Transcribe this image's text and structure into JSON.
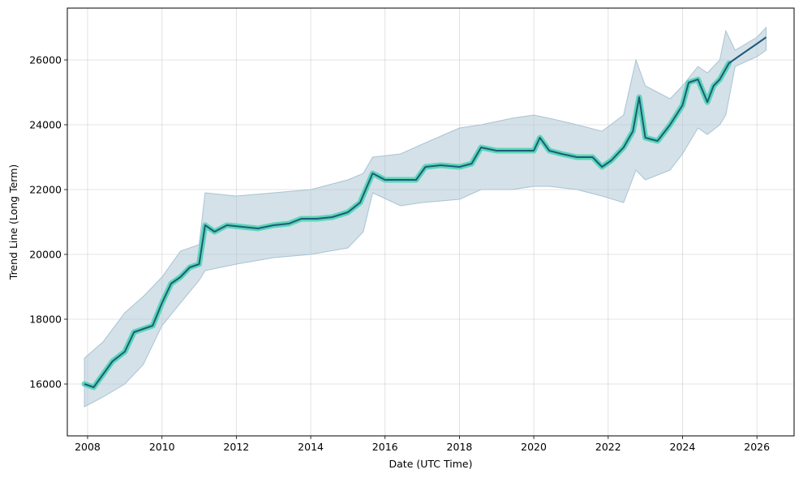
{
  "chart_data": {
    "type": "line",
    "title": "",
    "xlabel": "Date (UTC Time)",
    "ylabel": "Trend Line (Long Term)",
    "xlim": [
      "2007-06-16",
      "2027-01-01"
    ],
    "ylim": [
      14400,
      27600
    ],
    "x_ticks": [
      "2008",
      "2010",
      "2012",
      "2014",
      "2016",
      "2018",
      "2020",
      "2022",
      "2024",
      "2026"
    ],
    "y_ticks": [
      16000,
      18000,
      20000,
      22000,
      24000,
      26000
    ],
    "grid": true,
    "legend": "none",
    "colors": {
      "trend_line": "#1f5a7a",
      "fit_highlight": "#5dd6b8",
      "uncertainty_band": "#a9c3d3"
    },
    "series": [
      {
        "role": "trend",
        "x": [
          "2007-12-01",
          "2008-03-01",
          "2008-06-01",
          "2008-09-01",
          "2009-01-01",
          "2009-04-01",
          "2009-07-01",
          "2009-10-01",
          "2010-01-01",
          "2010-04-01",
          "2010-07-01",
          "2010-10-01",
          "2011-01-01",
          "2011-03-01",
          "2011-06-01",
          "2011-10-01",
          "2012-03-01",
          "2012-08-01",
          "2013-01-01",
          "2013-06-01",
          "2013-10-01",
          "2014-03-01",
          "2014-08-01",
          "2015-01-01",
          "2015-05-01",
          "2015-09-01",
          "2016-01-01",
          "2016-06-01",
          "2016-11-01",
          "2017-02-01",
          "2017-07-01",
          "2018-01-01",
          "2018-05-01",
          "2018-08-01",
          "2019-01-01",
          "2019-06-01",
          "2019-10-01",
          "2020-01-01",
          "2020-03-01",
          "2020-06-01",
          "2020-10-01",
          "2021-03-01",
          "2021-08-01",
          "2021-11-01",
          "2022-02-01",
          "2022-06-01",
          "2022-09-01",
          "2022-11-01",
          "2023-01-01",
          "2023-05-01",
          "2023-09-01",
          "2024-01-01",
          "2024-03-01",
          "2024-06-01",
          "2024-09-01",
          "2024-11-01",
          "2025-01-01",
          "2025-04-01",
          "2025-07-01",
          "2025-10-01",
          "2026-01-01",
          "2026-04-01"
        ],
        "y": [
          16000,
          15900,
          16300,
          16700,
          17000,
          17600,
          17700,
          17800,
          18500,
          19100,
          19300,
          19600,
          19700,
          20900,
          20700,
          20900,
          20850,
          20800,
          20900,
          20950,
          21100,
          21100,
          21150,
          21300,
          21600,
          22500,
          22300,
          22300,
          22300,
          22700,
          22750,
          22700,
          22800,
          23300,
          23200,
          23200,
          23200,
          23200,
          23600,
          23200,
          23100,
          23000,
          23000,
          22700,
          22900,
          23300,
          23800,
          24850,
          23600,
          23500,
          24000,
          24600,
          25300,
          25400,
          24700,
          25200,
          25400,
          25900,
          26100,
          26300,
          26500,
          26700
        ]
      },
      {
        "role": "upper_bound",
        "x": [
          "2007-12-01",
          "2008-06-01",
          "2009-01-01",
          "2009-07-01",
          "2010-01-01",
          "2010-07-01",
          "2011-01-01",
          "2011-03-01",
          "2012-01-01",
          "2013-01-01",
          "2014-01-01",
          "2015-01-01",
          "2015-06-01",
          "2015-09-01",
          "2016-06-01",
          "2017-01-01",
          "2018-01-01",
          "2018-08-01",
          "2019-06-01",
          "2020-01-01",
          "2020-06-01",
          "2021-03-01",
          "2021-11-01",
          "2022-06-01",
          "2022-10-01",
          "2023-01-01",
          "2023-09-01",
          "2024-01-01",
          "2024-06-01",
          "2024-09-01",
          "2025-01-01",
          "2025-03-01",
          "2025-06-01",
          "2026-01-01",
          "2026-04-01"
        ],
        "y": [
          16800,
          17300,
          18200,
          18700,
          19300,
          20100,
          20300,
          21900,
          21800,
          21900,
          22000,
          22300,
          22500,
          23000,
          23100,
          23400,
          23900,
          24000,
          24200,
          24300,
          24200,
          24000,
          23800,
          24300,
          26000,
          25200,
          24800,
          25200,
          25800,
          25600,
          26000,
          26900,
          26300,
          26700,
          27000
        ]
      },
      {
        "role": "lower_bound",
        "x": [
          "2007-12-01",
          "2008-06-01",
          "2009-01-01",
          "2009-07-01",
          "2010-01-01",
          "2010-07-01",
          "2011-01-01",
          "2011-03-01",
          "2012-01-01",
          "2013-01-01",
          "2014-01-01",
          "2015-01-01",
          "2015-06-01",
          "2015-09-01",
          "2016-06-01",
          "2017-01-01",
          "2018-01-01",
          "2018-08-01",
          "2019-06-01",
          "2020-01-01",
          "2020-06-01",
          "2021-03-01",
          "2021-11-01",
          "2022-06-01",
          "2022-10-01",
          "2023-01-01",
          "2023-09-01",
          "2024-01-01",
          "2024-06-01",
          "2024-09-01",
          "2025-01-01",
          "2025-03-01",
          "2025-06-01",
          "2026-01-01",
          "2026-04-01"
        ],
        "y": [
          15300,
          15600,
          16000,
          16600,
          17800,
          18500,
          19200,
          19500,
          19700,
          19900,
          20000,
          20200,
          20700,
          21900,
          21500,
          21600,
          21700,
          22000,
          22000,
          22100,
          22100,
          22000,
          21800,
          21600,
          22600,
          22300,
          22600,
          23100,
          23900,
          23700,
          24000,
          24300,
          25800,
          26100,
          26300
        ]
      }
    ],
    "fit_highlight_end": "2025-04-01"
  }
}
